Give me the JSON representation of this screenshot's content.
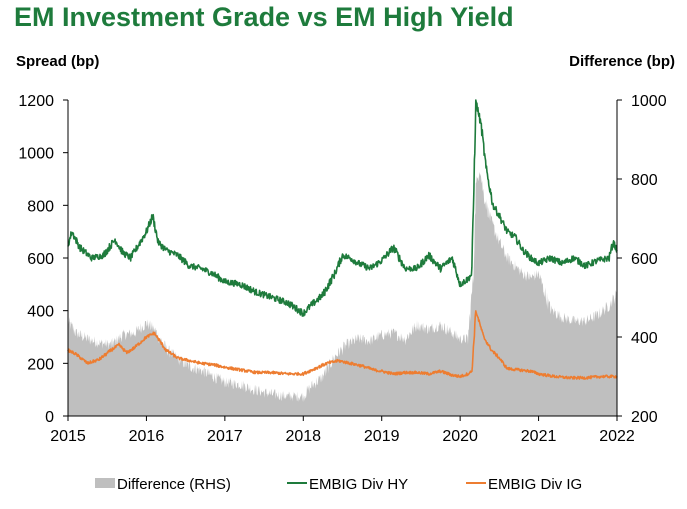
{
  "chart_data": {
    "type": "line",
    "title": "EM Investment Grade vs EM High Yield",
    "ylabel_left": "Spread (bp)",
    "ylabel_right": "Difference (bp)",
    "x_ticks": [
      "2015",
      "2016",
      "2017",
      "2018",
      "2019",
      "2020",
      "2021",
      "2022"
    ],
    "xlim": [
      2015,
      2022
    ],
    "ylim_left": [
      0,
      1200
    ],
    "ylim_right": [
      200,
      1000
    ],
    "yticks_left": [
      0,
      200,
      400,
      600,
      800,
      1000,
      1200
    ],
    "yticks_right": [
      200,
      400,
      600,
      800,
      1000
    ],
    "grid": false,
    "legend_position": "bottom",
    "series": [
      {
        "name": "Difference (RHS)",
        "axis": "right",
        "style": "area",
        "color": "#bfbfbf",
        "x": [
          2015.0,
          2015.1,
          2015.25,
          2015.4,
          2015.55,
          2015.7,
          2015.85,
          2016.0,
          2016.1,
          2016.25,
          2016.4,
          2016.55,
          2016.7,
          2016.85,
          2017.0,
          2017.2,
          2017.4,
          2017.6,
          2017.8,
          2018.0,
          2018.1,
          2018.25,
          2018.4,
          2018.55,
          2018.7,
          2018.85,
          2019.0,
          2019.15,
          2019.3,
          2019.45,
          2019.6,
          2019.75,
          2019.9,
          2020.0,
          2020.1,
          2020.17,
          2020.2,
          2020.25,
          2020.3,
          2020.4,
          2020.5,
          2020.6,
          2020.7,
          2020.8,
          2020.9,
          2021.0,
          2021.15,
          2021.3,
          2021.45,
          2021.6,
          2021.75,
          2021.9,
          2022.0
        ],
        "values": [
          440,
          410,
          395,
          385,
          380,
          405,
          410,
          435,
          420,
          370,
          345,
          325,
          315,
          300,
          285,
          280,
          265,
          255,
          250,
          250,
          275,
          300,
          350,
          380,
          395,
          390,
          405,
          410,
          395,
          430,
          420,
          430,
          410,
          395,
          395,
          560,
          780,
          830,
          760,
          690,
          640,
          600,
          580,
          560,
          550,
          560,
          470,
          450,
          440,
          440,
          455,
          480,
          510
        ]
      },
      {
        "name": "EMBIG Div HY",
        "axis": "left",
        "style": "line",
        "color": "#1e7b3c",
        "x": [
          2015.0,
          2015.05,
          2015.15,
          2015.3,
          2015.45,
          2015.6,
          2015.7,
          2015.8,
          2015.9,
          2016.0,
          2016.08,
          2016.15,
          2016.25,
          2016.4,
          2016.55,
          2016.7,
          2016.85,
          2017.0,
          2017.2,
          2017.4,
          2017.6,
          2017.8,
          2018.0,
          2018.1,
          2018.25,
          2018.4,
          2018.5,
          2018.6,
          2018.7,
          2018.85,
          2019.0,
          2019.15,
          2019.3,
          2019.45,
          2019.6,
          2019.75,
          2019.9,
          2020.0,
          2020.1,
          2020.15,
          2020.2,
          2020.22,
          2020.27,
          2020.33,
          2020.42,
          2020.5,
          2020.6,
          2020.7,
          2020.8,
          2020.9,
          2021.0,
          2021.15,
          2021.3,
          2021.45,
          2021.6,
          2021.75,
          2021.9,
          2021.95,
          2022.0
        ],
        "values": [
          650,
          700,
          640,
          600,
          610,
          670,
          620,
          600,
          650,
          700,
          760,
          660,
          630,
          610,
          570,
          560,
          540,
          510,
          500,
          470,
          450,
          430,
          390,
          420,
          460,
          540,
          610,
          600,
          580,
          560,
          590,
          640,
          560,
          560,
          610,
          560,
          600,
          500,
          520,
          540,
          1200,
          1170,
          1100,
          940,
          800,
          760,
          700,
          680,
          630,
          600,
          580,
          600,
          580,
          600,
          570,
          590,
          600,
          660,
          630
        ]
      },
      {
        "name": "EMBIG Div IG",
        "axis": "left",
        "style": "line",
        "color": "#ed7d31",
        "x": [
          2015.0,
          2015.1,
          2015.25,
          2015.4,
          2015.55,
          2015.65,
          2015.75,
          2015.85,
          2016.0,
          2016.1,
          2016.25,
          2016.4,
          2016.55,
          2016.7,
          2016.85,
          2017.0,
          2017.2,
          2017.4,
          2017.6,
          2017.8,
          2018.0,
          2018.15,
          2018.3,
          2018.45,
          2018.6,
          2018.75,
          2018.9,
          2019.0,
          2019.15,
          2019.3,
          2019.45,
          2019.6,
          2019.75,
          2019.9,
          2020.0,
          2020.1,
          2020.15,
          2020.2,
          2020.23,
          2020.3,
          2020.4,
          2020.5,
          2020.6,
          2020.75,
          2020.9,
          2021.0,
          2021.2,
          2021.4,
          2021.6,
          2021.8,
          2022.0
        ],
        "values": [
          250,
          235,
          200,
          215,
          250,
          270,
          240,
          260,
          300,
          315,
          250,
          220,
          210,
          200,
          195,
          185,
          175,
          165,
          165,
          160,
          160,
          180,
          200,
          210,
          200,
          190,
          175,
          170,
          160,
          165,
          165,
          160,
          170,
          155,
          150,
          160,
          170,
          400,
          370,
          300,
          250,
          220,
          180,
          175,
          170,
          160,
          150,
          145,
          145,
          150,
          150
        ]
      }
    ]
  }
}
